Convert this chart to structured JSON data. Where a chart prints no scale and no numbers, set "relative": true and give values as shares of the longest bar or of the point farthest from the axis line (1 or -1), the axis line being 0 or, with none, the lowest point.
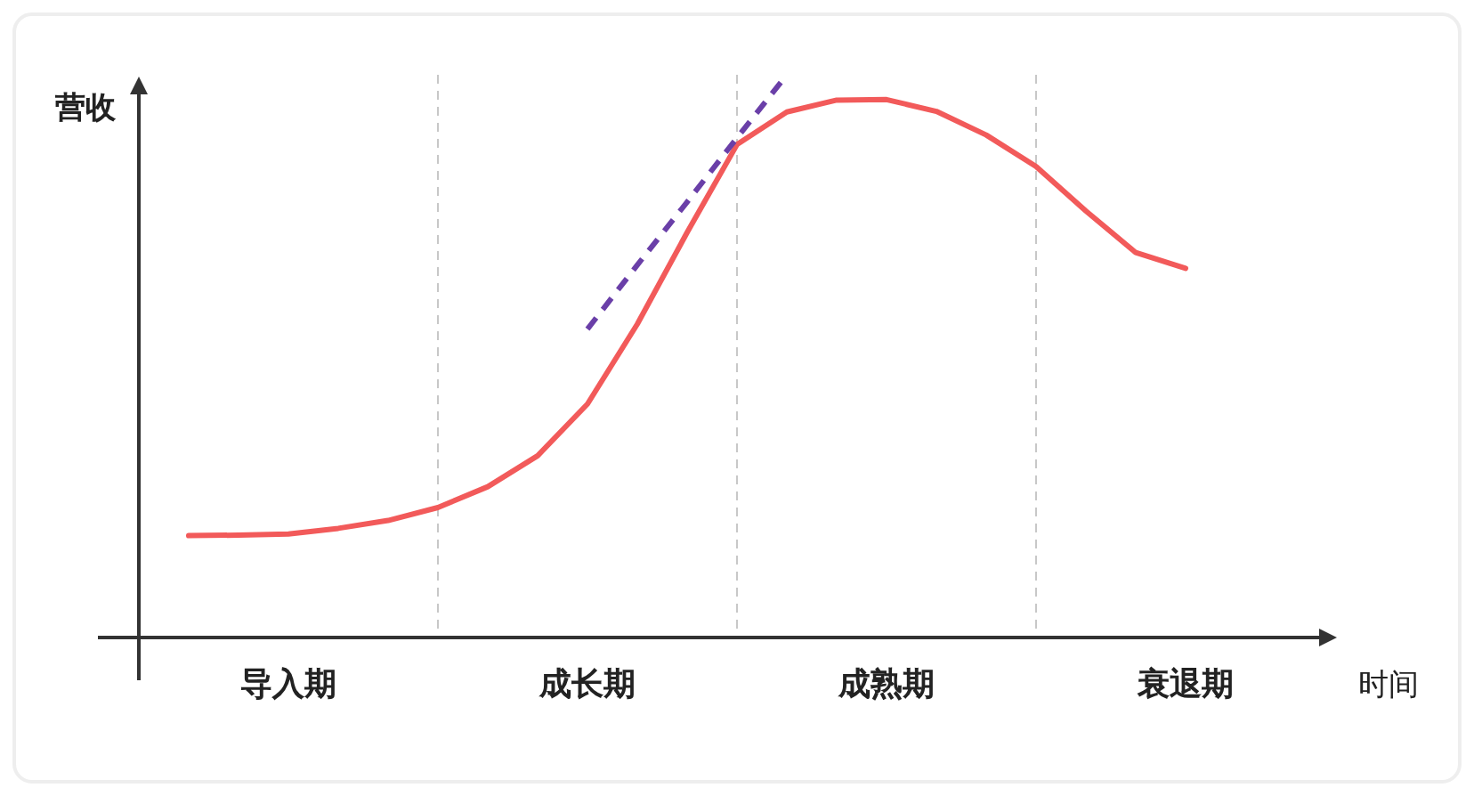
{
  "chart_data": {
    "type": "line",
    "relative": true,
    "xlabel": "时间",
    "ylabel": "营收",
    "categories": [
      null,
      null,
      null,
      "导入期",
      null,
      null,
      null,
      null,
      null,
      "成长期",
      null,
      null,
      null,
      null,
      null,
      "成熟期",
      null,
      null,
      null,
      null,
      null,
      "衰退期",
      null,
      null,
      null
    ],
    "grid": "x",
    "series": [
      {
        "color": "#f25a5a",
        "line_style": "solid",
        "values": [
          null,
          0.181,
          0.182,
          0.184,
          0.194,
          0.208,
          0.231,
          0.268,
          0.323,
          0.415,
          0.557,
          0.72,
          0.876,
          0.934,
          0.955,
          0.956,
          0.935,
          0.893,
          0.837,
          0.758,
          0.684,
          0.656,
          null,
          null,
          null
        ]
      },
      {
        "color": "#6a3fa8",
        "line_style": "dashed",
        "values": [
          null,
          null,
          null,
          null,
          null,
          null,
          null,
          null,
          null,
          0.548,
          0.662,
          0.774,
          0.888,
          1.0,
          null,
          null,
          null,
          null,
          null,
          null,
          null,
          null,
          null,
          null,
          null
        ]
      }
    ]
  }
}
